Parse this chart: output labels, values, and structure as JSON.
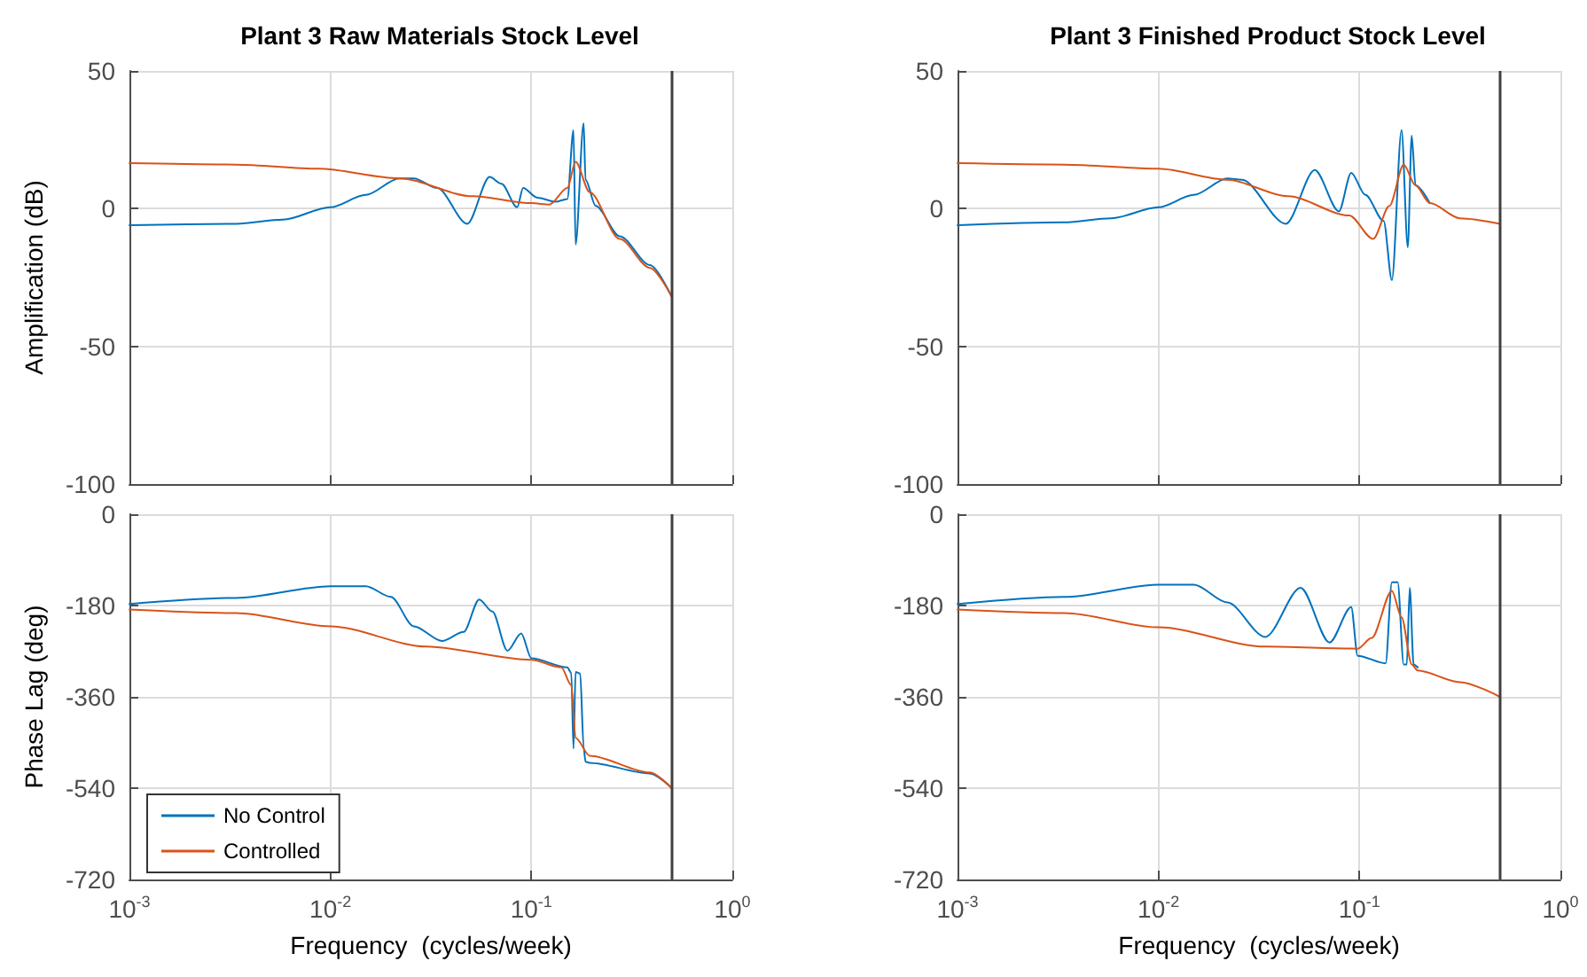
{
  "chart_data": [
    {
      "type": "line",
      "title": "Plant 3 Raw Materials Stock Level",
      "ylabel": "Amplification (dB)",
      "log": "x",
      "grid": true,
      "legend": false,
      "tick_labels": "y",
      "marker": "none",
      "line_style": "solid",
      "xlim": [
        0.001,
        1
      ],
      "xticks": [
        {
          "value": 0.001,
          "label": null
        },
        {
          "value": 0.01,
          "label": null
        },
        {
          "value": 0.1,
          "label": null
        },
        {
          "value": 1,
          "label": null
        }
      ],
      "ylim": [
        -100,
        50
      ],
      "yticks": [
        -100,
        -50,
        0,
        50
      ],
      "ref_lines": [
        {
          "axis": "x",
          "value": 0.5,
          "label": null,
          "color": "#404040"
        }
      ],
      "series": [
        {
          "color": "#0072bd",
          "x": [
            0.001,
            0.0034,
            0.0058,
            0.01,
            0.015,
            0.022,
            0.026,
            0.034,
            0.048,
            0.062,
            0.071,
            0.085,
            0.091,
            0.107,
            0.132,
            0.151,
            0.162,
            0.166,
            0.182,
            0.186,
            0.209,
            0.275,
            0.389,
            0.5
          ],
          "values": [
            -6,
            -5.5,
            -4,
            0.5,
            5,
            11,
            11,
            7.5,
            -5.5,
            11.5,
            9,
            0.5,
            7.5,
            4,
            2.5,
            3.5,
            28.5,
            -13,
            31,
            10.5,
            1,
            -10,
            -20.5,
            -32
          ]
        },
        {
          "color": "#d95319",
          "x": [
            0.001,
            0.0034,
            0.0087,
            0.022,
            0.051,
            0.1,
            0.123,
            0.151,
            0.166,
            0.195,
            0.275,
            0.389,
            0.5
          ],
          "values": [
            16.5,
            16,
            14.5,
            11,
            4.5,
            2,
            1.5,
            7.5,
            17,
            6,
            -11,
            -21.5,
            -32
          ]
        }
      ]
    },
    {
      "type": "line",
      "ylabel": "Phase Lag (deg)",
      "xlabel": "Frequency  (cycles/week)",
      "log": "x",
      "grid": true,
      "legend": "bottom left",
      "marker": "none",
      "line_style": "solid",
      "xlim": [
        0.001,
        1
      ],
      "xticks": [
        {
          "value": 0.001,
          "label": "10$^{-3}$"
        },
        {
          "value": 0.01,
          "label": "10$^{-2}$"
        },
        {
          "value": 0.1,
          "label": "10$^{-1}$"
        },
        {
          "value": 1,
          "label": "10$^{0}$"
        }
      ],
      "ylim": [
        -720,
        0
      ],
      "yticks": [
        -720,
        -540,
        -360,
        -180,
        0
      ],
      "ref_lines": [
        {
          "axis": "x",
          "value": 0.5,
          "label": null,
          "color": "#404040"
        }
      ],
      "series": [
        {
          "name": "No Control",
          "color": "#0072bd",
          "x": [
            0.001,
            0.0034,
            0.01,
            0.015,
            0.02,
            0.026,
            0.036,
            0.046,
            0.055,
            0.064,
            0.076,
            0.089,
            0.1,
            0.151,
            0.158,
            0.162,
            0.166,
            0.175,
            0.182,
            0.186,
            0.195,
            0.389,
            0.5
          ],
          "values": [
            -177,
            -165,
            -142,
            -142,
            -163,
            -221,
            -250,
            -232,
            -168,
            -192,
            -269,
            -235,
            -284,
            -302,
            -313,
            -462,
            -311,
            -314,
            -459,
            -488,
            -490,
            -511,
            -540
          ]
        },
        {
          "name": "Controlled",
          "color": "#d95319",
          "x": [
            0.001,
            0.0034,
            0.01,
            0.03,
            0.1,
            0.141,
            0.158,
            0.166,
            0.195,
            0.389,
            0.5
          ],
          "values": [
            -188,
            -195,
            -221,
            -261,
            -287,
            -302,
            -337,
            -441,
            -476,
            -509,
            -540
          ]
        }
      ]
    },
    {
      "type": "line",
      "title": "Plant 3 Finished Product Stock Level",
      "log": "x",
      "grid": true,
      "legend": false,
      "tick_labels": "y",
      "marker": "none",
      "line_style": "solid",
      "xlim": [
        0.001,
        1
      ],
      "xticks": [
        {
          "value": 0.001,
          "label": null
        },
        {
          "value": 0.01,
          "label": null
        },
        {
          "value": 0.1,
          "label": null
        },
        {
          "value": 1,
          "label": null
        }
      ],
      "ylim": [
        -100,
        50
      ],
      "yticks": [
        -100,
        -50,
        0,
        50
      ],
      "ref_lines": [
        {
          "axis": "x",
          "value": 0.5,
          "label": null,
          "color": "#404040"
        }
      ],
      "series": [
        {
          "color": "#0072bd",
          "x": [
            0.001,
            0.0034,
            0.0058,
            0.01,
            0.015,
            0.022,
            0.026,
            0.043,
            0.06,
            0.079,
            0.091,
            0.107,
            0.132,
            0.145,
            0.162,
            0.174,
            0.182,
            0.19,
            0.224
          ],
          "values": [
            -6,
            -5,
            -3.5,
            0.5,
            5,
            11,
            10.5,
            -5.5,
            14,
            -1,
            13,
            5,
            -4.5,
            -26,
            28.5,
            -14,
            26.5,
            8.5,
            2
          ]
        },
        {
          "color": "#d95319",
          "x": [
            0.001,
            0.0034,
            0.01,
            0.022,
            0.044,
            0.089,
            0.117,
            0.141,
            0.166,
            0.19,
            0.224,
            0.316,
            0.5
          ],
          "values": [
            16.5,
            16,
            14.5,
            10.5,
            4.5,
            -2.5,
            -11,
            1,
            16,
            8.5,
            2,
            -3.5,
            -5.5
          ]
        }
      ]
    },
    {
      "type": "line",
      "xlabel": "Frequency  (cycles/week)",
      "log": "x",
      "grid": true,
      "legend": false,
      "marker": "none",
      "line_style": "solid",
      "xlim": [
        0.001,
        1
      ],
      "xticks": [
        {
          "value": 0.001,
          "label": "10$^{-3}$"
        },
        {
          "value": 0.01,
          "label": "10$^{-2}$"
        },
        {
          "value": 0.1,
          "label": "10$^{-1}$"
        },
        {
          "value": 1,
          "label": "10$^{0}$"
        }
      ],
      "ylim": [
        -720,
        0
      ],
      "yticks": [
        -720,
        -540,
        -360,
        -180,
        0
      ],
      "ref_lines": [
        {
          "axis": "x",
          "value": 0.5,
          "label": null,
          "color": "#404040"
        }
      ],
      "series": [
        {
          "color": "#0072bd",
          "x": [
            0.001,
            0.0034,
            0.01,
            0.015,
            0.022,
            0.034,
            0.051,
            0.071,
            0.091,
            0.098,
            0.135,
            0.145,
            0.155,
            0.166,
            0.172,
            0.178,
            0.186,
            0.195
          ],
          "values": [
            -177,
            -163,
            -139,
            -139,
            -174,
            -242,
            -145,
            -253,
            -183,
            -279,
            -294,
            -134,
            -134,
            -296,
            -296,
            -145,
            -296,
            -302
          ]
        },
        {
          "color": "#d95319",
          "x": [
            0.001,
            0.0034,
            0.01,
            0.034,
            0.098,
            0.115,
            0.145,
            0.162,
            0.182,
            0.195,
            0.316,
            0.5
          ],
          "values": [
            -188,
            -195,
            -223,
            -261,
            -265,
            -244,
            -151,
            -203,
            -296,
            -308,
            -331,
            -360
          ]
        }
      ]
    }
  ]
}
